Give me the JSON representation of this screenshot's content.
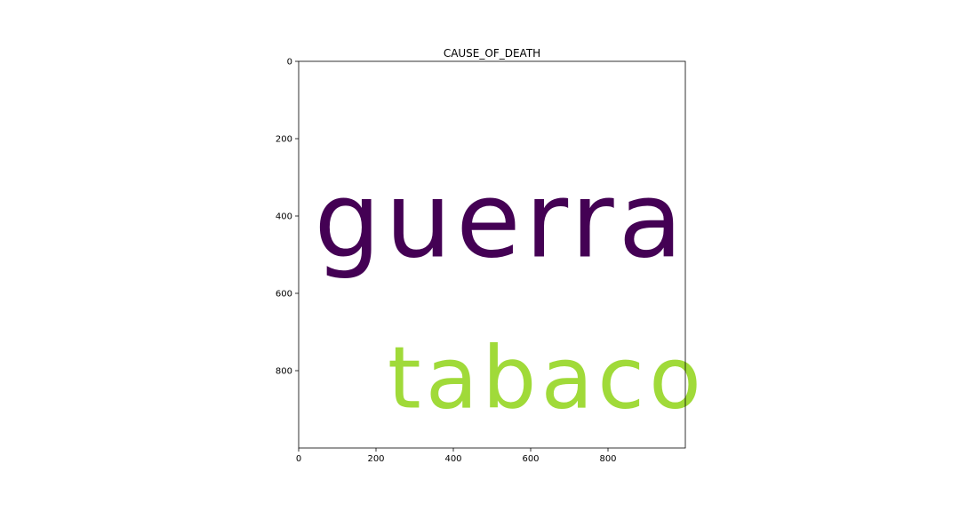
{
  "chart_data": {
    "type": "wordcloud",
    "title": "CAUSE_OF_DEATH",
    "xlabel": "",
    "ylabel": "",
    "xlim": [
      0,
      1000
    ],
    "ylim": [
      1000,
      0
    ],
    "xticks": [
      0,
      200,
      400,
      600,
      800
    ],
    "yticks": [
      0,
      200,
      400,
      600,
      800
    ],
    "words": [
      {
        "text": "guerra",
        "x": 40,
        "y": 505,
        "color": "#440154"
      },
      {
        "text": "tabaco",
        "x": 230,
        "y": 895,
        "color": "#a0da39"
      }
    ]
  }
}
